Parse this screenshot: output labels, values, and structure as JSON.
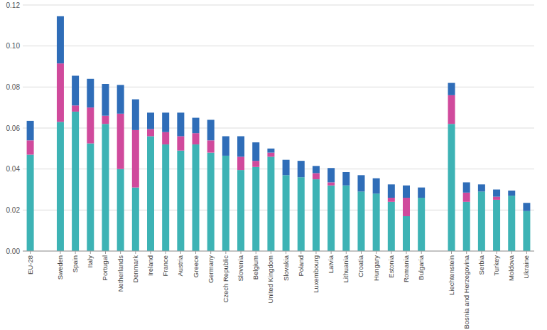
{
  "chart_data": {
    "type": "bar",
    "stacked": true,
    "grid": true,
    "categories": [
      "EU-28",
      null,
      "Sweden",
      "Spain",
      "Italy",
      "Portugal",
      "Netherlands",
      "Denmark",
      "Ireland",
      "France",
      "Austria",
      "Greece",
      "Germany",
      "Czech Republic",
      "Slovenia",
      "Belgium",
      "United Kingdom",
      "Slovakia",
      "Poland",
      "Luxembourg",
      "Latvia",
      "Lithuania",
      "Croatia",
      "Hungary",
      "Estonia",
      "Romania",
      "Bulgaria",
      null,
      "Liechtenstein",
      "Bosnia and Herzegovina",
      "Serbia",
      "Turkey",
      "Moldova",
      "Ukraine"
    ],
    "series": [
      {
        "color": "#3db3b5",
        "values": [
          0.047,
          null,
          0.063,
          0.068,
          0.0525,
          0.062,
          0.04,
          0.031,
          0.056,
          0.052,
          0.049,
          0.052,
          0.048,
          0.0465,
          0.0395,
          0.041,
          0.046,
          0.037,
          0.036,
          0.035,
          0.032,
          0.032,
          0.029,
          0.028,
          0.024,
          0.017,
          0.026,
          null,
          0.062,
          0.024,
          0.029,
          0.025,
          0.027,
          0.0195
        ]
      },
      {
        "color": "#d04a9c",
        "values": [
          0.007,
          null,
          0.0285,
          0.003,
          0.0175,
          0.004,
          0.027,
          0.028,
          0.0035,
          0.006,
          0.007,
          0.0055,
          0.006,
          0,
          0.0065,
          0.003,
          0.002,
          0,
          0,
          0.003,
          0.0015,
          0,
          0,
          0,
          0.002,
          0.009,
          0,
          null,
          0.014,
          0.0045,
          0,
          0.0015,
          0,
          0
        ]
      },
      {
        "color": "#2f6db8",
        "values": [
          0.0095,
          null,
          0.023,
          0.0145,
          0.014,
          0.0155,
          0.014,
          0.015,
          0.008,
          0.0095,
          0.0115,
          0.0075,
          0.01,
          0.0095,
          0.01,
          0.009,
          0.002,
          0.0075,
          0.008,
          0.0035,
          0.007,
          0.0065,
          0.008,
          0.0075,
          0.0065,
          0.006,
          0.005,
          null,
          0.006,
          0.005,
          0.0035,
          0.0035,
          0.0025,
          0.004
        ]
      }
    ],
    "ylim": [
      0,
      0.12
    ],
    "yticks": [
      {
        "value": 0,
        "label": "0.00"
      },
      {
        "value": 0.02,
        "label": "0.02"
      },
      {
        "value": 0.04,
        "label": "0.04"
      },
      {
        "value": 0.06,
        "label": "0.06"
      },
      {
        "value": 0.08,
        "label": "0.08"
      },
      {
        "value": 0.1,
        "label": "0.10"
      },
      {
        "value": 0.12,
        "label": "0.12"
      }
    ]
  }
}
